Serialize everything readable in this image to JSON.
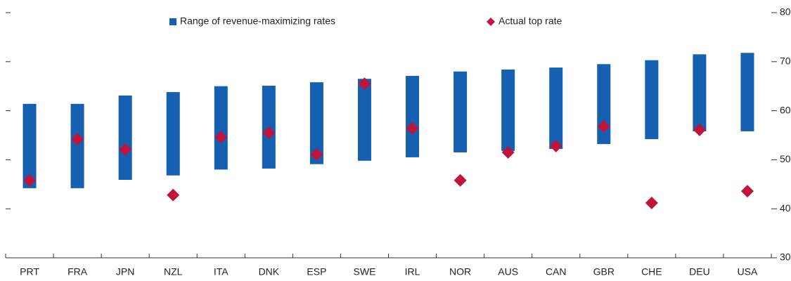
{
  "chart_data": {
    "type": "range-bar-diamond",
    "categories": [
      "PRT",
      "FRA",
      "JPN",
      "NZL",
      "ITA",
      "DNK",
      "ESP",
      "SWE",
      "IRL",
      "NOR",
      "AUS",
      "CAN",
      "GBR",
      "CHE",
      "DEU",
      "USA"
    ],
    "series": [
      {
        "name": "Range of revenue-maximizing rates",
        "color": "#1560b0",
        "low": [
          44.2,
          44.2,
          45.9,
          46.8,
          48.0,
          48.2,
          49.1,
          49.8,
          50.5,
          51.5,
          51.8,
          52.2,
          53.2,
          54.2,
          55.8,
          55.8
        ],
        "high": [
          61.4,
          61.4,
          63.1,
          63.8,
          65.0,
          65.1,
          65.8,
          66.5,
          67.1,
          68.0,
          68.4,
          68.8,
          69.5,
          70.3,
          71.5,
          71.8
        ]
      },
      {
        "name": "Actual top rate",
        "color": "#c0143c",
        "values": [
          45.8,
          54.2,
          52.1,
          42.8,
          54.6,
          55.5,
          51.1,
          65.5,
          56.4,
          45.8,
          51.5,
          52.8,
          56.8,
          41.2,
          56.1,
          43.6
        ]
      }
    ],
    "ylim": [
      30,
      80
    ],
    "yticks": [
      30,
      40,
      50,
      60,
      70,
      80
    ],
    "legend": "top"
  }
}
